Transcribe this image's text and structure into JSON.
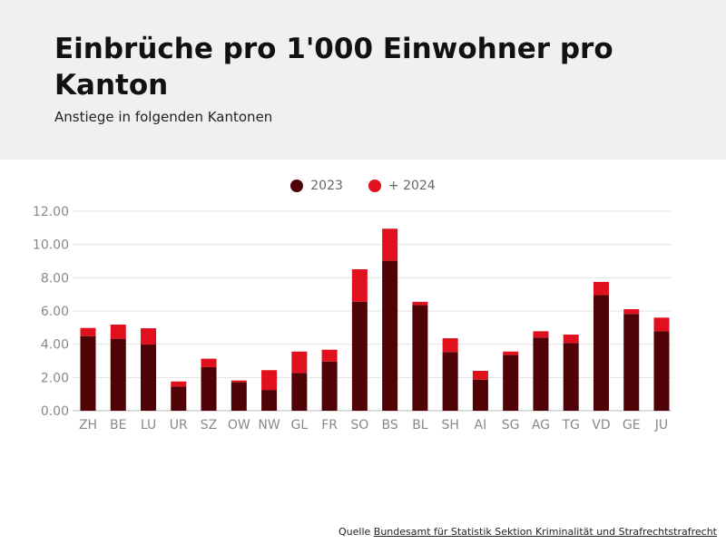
{
  "header": {
    "title": "Einbrüche pro 1'000 Einwohner pro Kanton",
    "subtitle": "Anstiege in folgenden Kantonen"
  },
  "source": {
    "prefix": "Quelle",
    "link": "Bundesamt für Statistik Sektion Kriminalität und Strafrechtstrafrecht"
  },
  "colors": {
    "base": "#4f0306",
    "increase": "#e0101c",
    "header_bg": "#f0f0f0"
  },
  "chart_data": {
    "type": "bar",
    "stacked": true,
    "categories": [
      "ZH",
      "BE",
      "LU",
      "UR",
      "SZ",
      "OW",
      "NW",
      "GL",
      "FR",
      "SO",
      "BS",
      "BL",
      "SH",
      "AI",
      "SG",
      "AG",
      "TG",
      "VD",
      "GE",
      "JU"
    ],
    "series": [
      {
        "name": "2023",
        "values": [
          4.49,
          4.33,
          3.98,
          1.45,
          2.62,
          1.71,
          1.25,
          2.27,
          2.96,
          6.56,
          9.02,
          6.36,
          3.53,
          1.87,
          3.35,
          4.4,
          4.07,
          6.96,
          5.82,
          4.78
        ]
      },
      {
        "name": "+ 2024",
        "values": [
          0.49,
          0.85,
          0.98,
          0.31,
          0.51,
          0.11,
          1.19,
          1.29,
          0.71,
          1.95,
          1.93,
          0.19,
          0.83,
          0.53,
          0.21,
          0.38,
          0.51,
          0.79,
          0.29,
          0.82
        ]
      }
    ],
    "ylim": [
      0,
      12
    ],
    "yticks": [
      "0.00",
      "2.00",
      "4.00",
      "6.00",
      "8.00",
      "10.00",
      "12.00"
    ],
    "grid": true,
    "legend": "top-center"
  }
}
